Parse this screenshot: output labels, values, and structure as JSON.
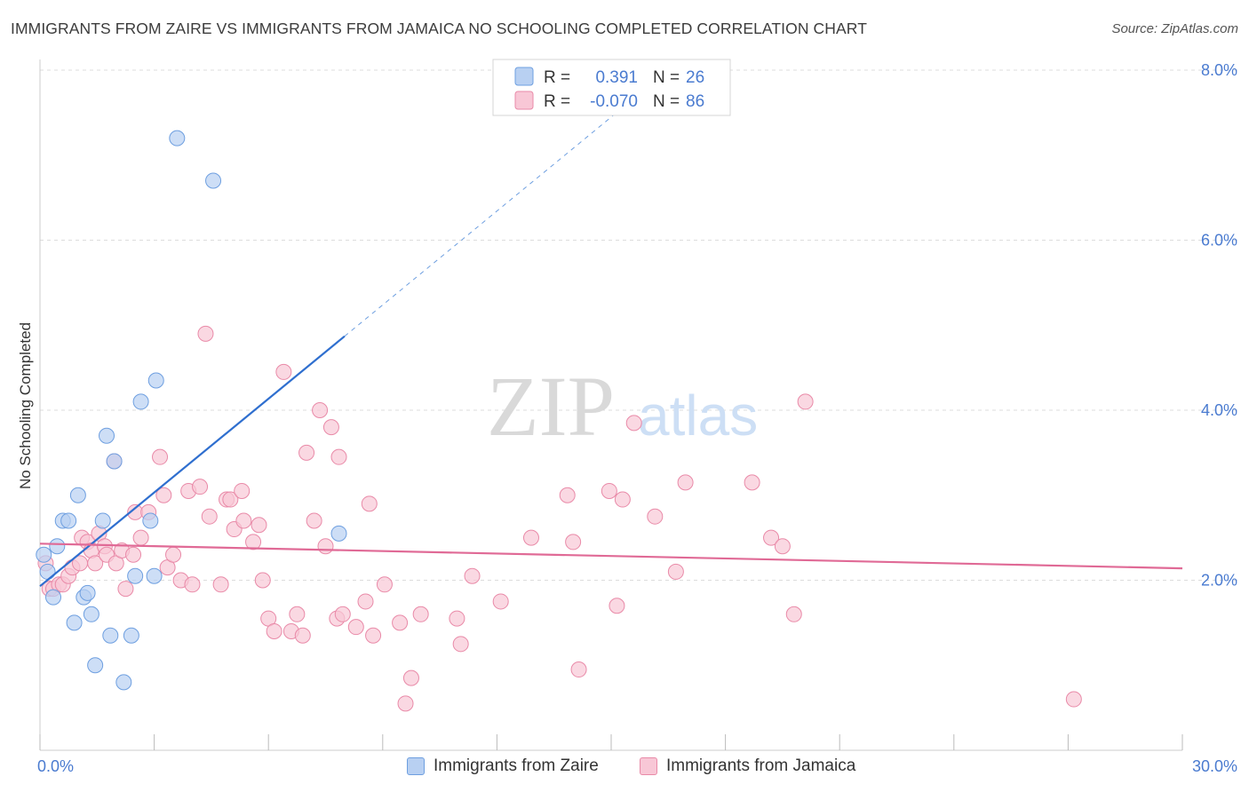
{
  "title": "IMMIGRANTS FROM ZAIRE VS IMMIGRANTS FROM JAMAICA NO SCHOOLING COMPLETED CORRELATION CHART",
  "source": "Source: ZipAtlas.com",
  "watermark": {
    "zip": "ZIP",
    "atlas": "atlas"
  },
  "colors": {
    "zaire_fill": "#b8d0f2",
    "zaire_stroke": "#6e9fe0",
    "zaire_line": "#2f6fcf",
    "jamaica_fill": "#f8c7d6",
    "jamaica_stroke": "#e98aa8",
    "jamaica_line": "#e06a96",
    "axis_text": "#4a7bd0",
    "grid": "#dddddd"
  },
  "legend": {
    "r_label": "R =",
    "n_label": "N =",
    "zaire_r": "0.391",
    "zaire_n": "26",
    "jamaica_r": "-0.070",
    "jamaica_n": "86"
  },
  "chart_data": {
    "type": "scatter",
    "title": "IMMIGRANTS FROM ZAIRE VS IMMIGRANTS FROM JAMAICA NO SCHOOLING COMPLETED CORRELATION CHART",
    "xlabel": "",
    "ylabel": "No Schooling Completed",
    "xlim": [
      0,
      30
    ],
    "ylim": [
      0,
      8
    ],
    "x_tick_labels": [
      "0.0%",
      "30.0%"
    ],
    "y_ticks": [
      2,
      4,
      6,
      8
    ],
    "y_tick_labels": [
      "2.0%",
      "4.0%",
      "6.0%",
      "8.0%"
    ],
    "legend_entries": [
      "Immigrants from Zaire",
      "Immigrants from Jamaica"
    ],
    "series": [
      {
        "name": "Immigrants from Zaire",
        "r": 0.391,
        "n": 26,
        "trend": {
          "x": [
            0.0,
            8.0
          ],
          "y": [
            1.93,
            4.87
          ],
          "dashed_extension_to": [
            16.5,
            8.0
          ]
        },
        "points": [
          [
            0.1,
            2.3
          ],
          [
            0.2,
            2.1
          ],
          [
            0.35,
            1.8
          ],
          [
            0.45,
            2.4
          ],
          [
            0.6,
            2.7
          ],
          [
            0.75,
            2.7
          ],
          [
            0.9,
            1.5
          ],
          [
            1.0,
            3.0
          ],
          [
            1.15,
            1.8
          ],
          [
            1.25,
            1.85
          ],
          [
            1.35,
            1.6
          ],
          [
            1.45,
            1.0
          ],
          [
            1.65,
            2.7
          ],
          [
            1.75,
            3.7
          ],
          [
            1.85,
            1.35
          ],
          [
            1.95,
            3.4
          ],
          [
            2.2,
            0.8
          ],
          [
            2.4,
            1.35
          ],
          [
            2.5,
            2.05
          ],
          [
            2.65,
            4.1
          ],
          [
            2.9,
            2.7
          ],
          [
            3.0,
            2.05
          ],
          [
            3.05,
            4.35
          ],
          [
            3.6,
            7.2
          ],
          [
            4.55,
            6.7
          ],
          [
            7.85,
            2.55
          ]
        ]
      },
      {
        "name": "Immigrants from Jamaica",
        "r": -0.07,
        "n": 86,
        "trend": {
          "x": [
            0.0,
            30.0
          ],
          "y": [
            2.43,
            2.14
          ]
        },
        "points": [
          [
            0.15,
            2.2
          ],
          [
            0.25,
            1.9
          ],
          [
            0.35,
            1.9
          ],
          [
            0.5,
            1.95
          ],
          [
            0.6,
            1.95
          ],
          [
            0.75,
            2.05
          ],
          [
            0.85,
            2.15
          ],
          [
            1.05,
            2.2
          ],
          [
            1.1,
            2.5
          ],
          [
            1.25,
            2.45
          ],
          [
            1.35,
            2.35
          ],
          [
            1.45,
            2.2
          ],
          [
            1.55,
            2.55
          ],
          [
            1.7,
            2.4
          ],
          [
            1.75,
            2.3
          ],
          [
            1.95,
            3.4
          ],
          [
            2.0,
            2.2
          ],
          [
            2.15,
            2.35
          ],
          [
            2.25,
            1.9
          ],
          [
            2.45,
            2.3
          ],
          [
            2.5,
            2.8
          ],
          [
            2.65,
            2.5
          ],
          [
            2.85,
            2.8
          ],
          [
            3.15,
            3.45
          ],
          [
            3.25,
            3.0
          ],
          [
            3.35,
            2.15
          ],
          [
            3.5,
            2.3
          ],
          [
            3.7,
            2.0
          ],
          [
            3.9,
            3.05
          ],
          [
            4.0,
            1.95
          ],
          [
            4.2,
            3.1
          ],
          [
            4.35,
            4.9
          ],
          [
            4.45,
            2.75
          ],
          [
            4.75,
            1.95
          ],
          [
            4.9,
            2.95
          ],
          [
            5.0,
            2.95
          ],
          [
            5.1,
            2.6
          ],
          [
            5.3,
            3.05
          ],
          [
            5.35,
            2.7
          ],
          [
            5.6,
            2.45
          ],
          [
            5.75,
            2.65
          ],
          [
            5.85,
            2.0
          ],
          [
            6.0,
            1.55
          ],
          [
            6.15,
            1.4
          ],
          [
            6.4,
            4.45
          ],
          [
            6.6,
            1.4
          ],
          [
            6.75,
            1.6
          ],
          [
            6.9,
            1.35
          ],
          [
            7.0,
            3.5
          ],
          [
            7.2,
            2.7
          ],
          [
            7.35,
            4.0
          ],
          [
            7.5,
            2.4
          ],
          [
            7.65,
            3.8
          ],
          [
            7.8,
            1.55
          ],
          [
            7.85,
            3.45
          ],
          [
            7.95,
            1.6
          ],
          [
            8.3,
            1.45
          ],
          [
            8.55,
            1.75
          ],
          [
            8.65,
            2.9
          ],
          [
            8.75,
            1.35
          ],
          [
            9.05,
            1.95
          ],
          [
            9.45,
            1.5
          ],
          [
            9.6,
            0.55
          ],
          [
            9.75,
            0.85
          ],
          [
            10.0,
            1.6
          ],
          [
            10.95,
            1.55
          ],
          [
            11.05,
            1.25
          ],
          [
            11.35,
            2.05
          ],
          [
            12.1,
            1.75
          ],
          [
            12.9,
            2.5
          ],
          [
            13.85,
            3.0
          ],
          [
            14.0,
            2.45
          ],
          [
            14.15,
            0.95
          ],
          [
            14.95,
            3.05
          ],
          [
            15.15,
            1.7
          ],
          [
            15.3,
            2.95
          ],
          [
            15.6,
            3.85
          ],
          [
            16.15,
            2.75
          ],
          [
            16.7,
            2.1
          ],
          [
            16.95,
            3.15
          ],
          [
            18.7,
            3.15
          ],
          [
            19.2,
            2.5
          ],
          [
            19.5,
            2.4
          ],
          [
            19.8,
            1.6
          ],
          [
            20.1,
            4.1
          ],
          [
            27.15,
            0.6
          ]
        ]
      }
    ]
  }
}
